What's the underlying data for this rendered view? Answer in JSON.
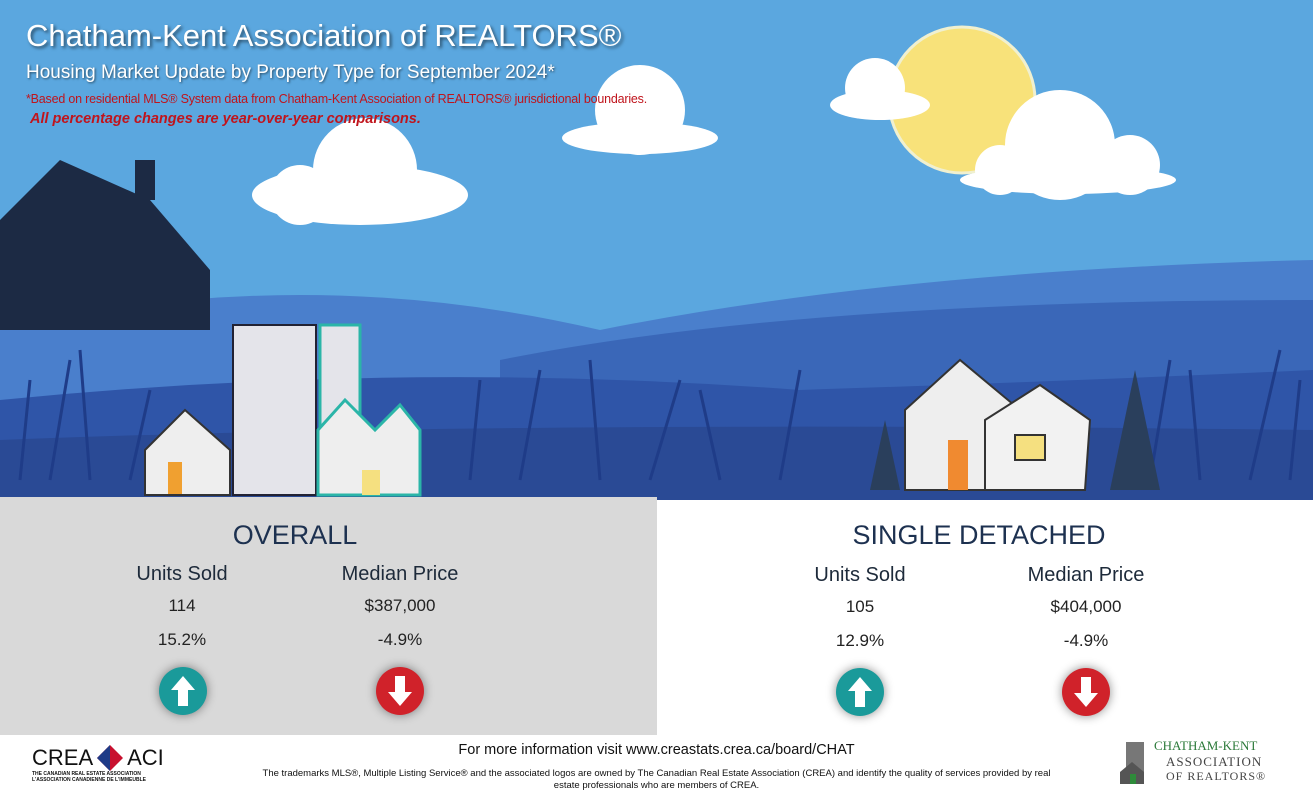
{
  "header": {
    "title": "Chatham-Kent Association of REALTORS®",
    "subtitle": "Housing Market Update by Property Type for September 2024*",
    "footnote": "*Based on residential MLS® System data from Chatham-Kent Association of REALTORS® jurisdictional boundaries.",
    "comparison_note": "All percentage changes are year-over-year comparisons."
  },
  "sections": [
    {
      "title": "OVERALL",
      "units_sold_label": "Units Sold",
      "median_price_label": "Median Price",
      "units_sold": "114",
      "median_price": "$387,000",
      "units_change": "15.2%",
      "price_change": "-4.9%",
      "units_trend": "up-arrow-icon",
      "price_trend": "down-arrow-icon"
    },
    {
      "title": "SINGLE DETACHED",
      "units_sold_label": "Units Sold",
      "median_price_label": "Median Price",
      "units_sold": "105",
      "median_price": "$404,000",
      "units_change": "12.9%",
      "price_change": "-4.9%",
      "units_trend": "up-arrow-icon",
      "price_trend": "down-arrow-icon"
    }
  ],
  "footer": {
    "info": "For more information visit www.creastats.crea.ca/board/CHAT",
    "trademark": "The trademarks MLS®, Multiple Listing Service® and the associated logos are owned by The Canadian Real Estate Association (CREA) and identify the quality of services provided by real estate professionals who are members of CREA.",
    "crea_logo": {
      "left": "CREA",
      "right": "ACI",
      "line1": "THE CANADIAN REAL ESTATE ASSOCIATION",
      "line2": "L'ASSOCIATION CANADIENNE DE L'IMMEUBLE"
    },
    "ck_logo": {
      "line1": "CHATHAM-KENT",
      "line2": "ASSOCIATION",
      "line3": "OF REALTORS®"
    }
  },
  "colors": {
    "sky": "#5ba7df",
    "up": "#1a9a9a",
    "down": "#d0222a",
    "panel": "#d9d9d9",
    "landscape": "#2f55a8"
  }
}
